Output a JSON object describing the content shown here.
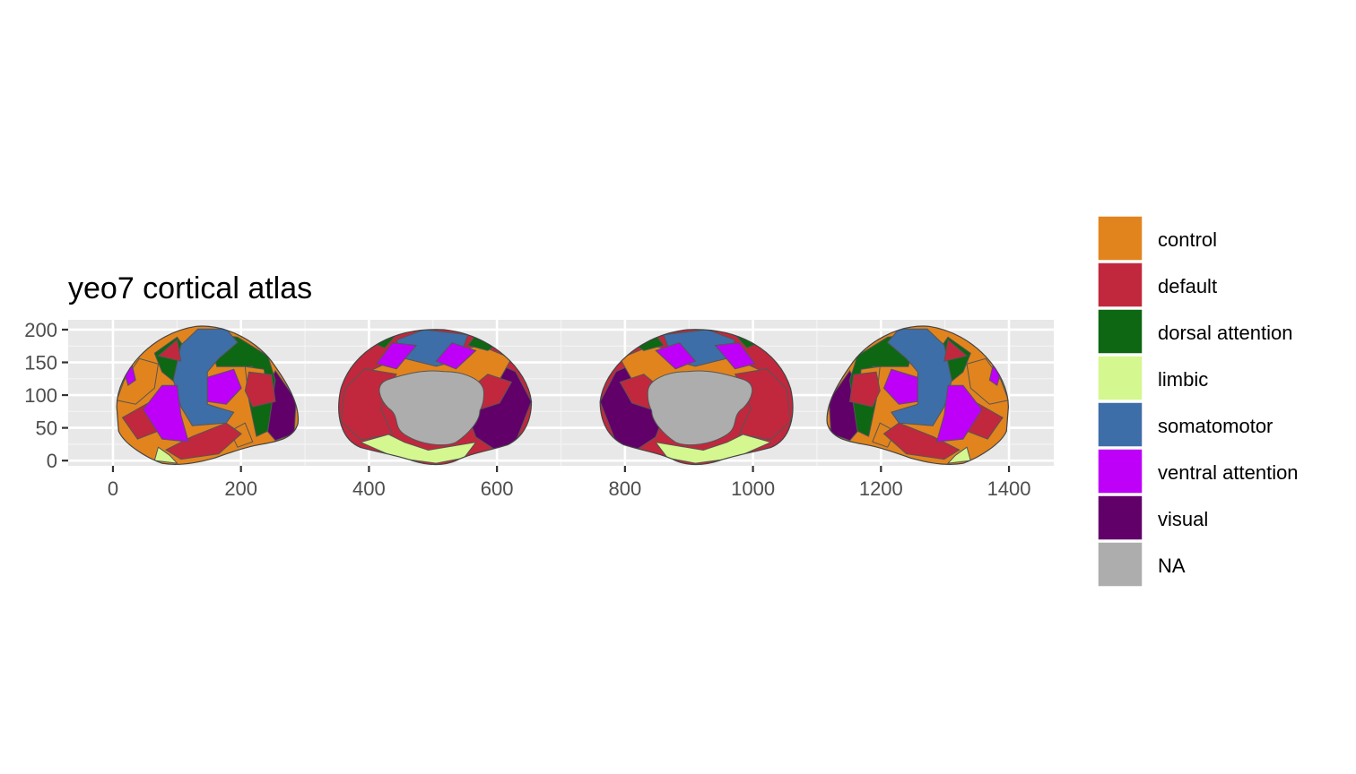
{
  "chart_data": {
    "type": "map",
    "title": "yeo7 cortical atlas",
    "xlabel": "",
    "ylabel": "",
    "x_ticks": [
      0,
      200,
      400,
      600,
      800,
      1000,
      1200,
      1400
    ],
    "y_ticks": [
      0,
      50,
      100,
      150,
      200
    ],
    "xlim": [
      -70,
      1470
    ],
    "ylim": [
      -8,
      215
    ],
    "grid": true,
    "legend_position": "right",
    "legend": [
      {
        "label": "control",
        "color": "#E1841E"
      },
      {
        "label": "default",
        "color": "#C1283D"
      },
      {
        "label": "dorsal attention",
        "color": "#0E6713"
      },
      {
        "label": "limbic",
        "color": "#D4F78F"
      },
      {
        "label": "somatomotor",
        "color": "#3D6EA8"
      },
      {
        "label": "ventral attention",
        "color": "#BE00F9"
      },
      {
        "label": "visual",
        "color": "#610069"
      },
      {
        "label": "NA",
        "color": "#ADADAD"
      }
    ],
    "views": [
      {
        "hemisphere": "left",
        "side": "lateral",
        "x_range": [
          0,
          295
        ],
        "y_range": [
          0,
          205
        ]
      },
      {
        "hemisphere": "left",
        "side": "medial",
        "x_range": [
          350,
          660
        ],
        "y_range": [
          0,
          200
        ]
      },
      {
        "hemisphere": "right",
        "side": "medial",
        "x_range": [
          755,
          1065
        ],
        "y_range": [
          0,
          200
        ]
      },
      {
        "hemisphere": "right",
        "side": "lateral",
        "x_range": [
          1110,
          1405
        ],
        "y_range": [
          0,
          205
        ]
      }
    ]
  }
}
